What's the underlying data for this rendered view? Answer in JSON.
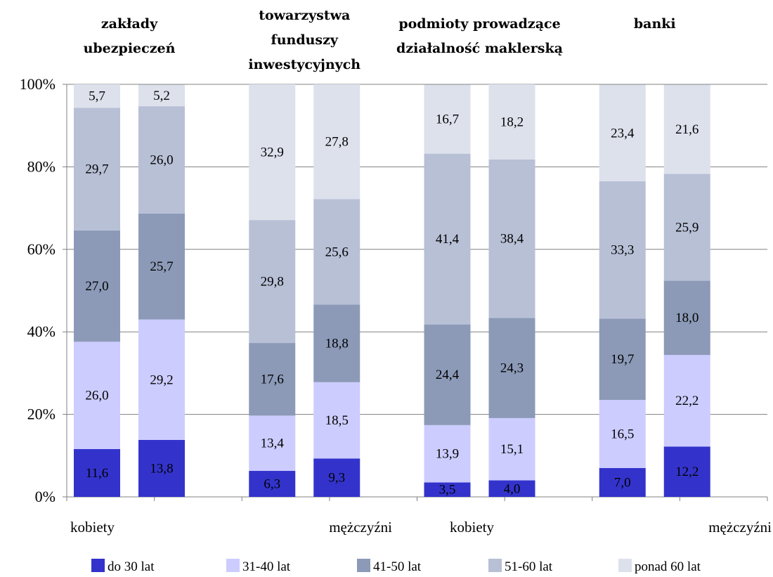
{
  "chart_data": {
    "type": "bar",
    "stacked": true,
    "groups": [
      {
        "title_lines": [
          "zakłady",
          "ubezpieczeń"
        ],
        "bars": [
          {
            "label": "kobiety",
            "values": [
              11.6,
              26.0,
              27.0,
              29.7,
              5.7
            ],
            "labels": [
              "11,6",
              "26,0",
              "27,0",
              "29,7",
              "5,7"
            ]
          },
          {
            "label": "mężczyźni",
            "values": [
              13.8,
              29.2,
              25.7,
              26.0,
              5.2
            ],
            "labels": [
              "13,8",
              "29,2",
              "25,7",
              "26,0",
              "5,2"
            ]
          }
        ]
      },
      {
        "title_lines": [
          "towarzystwa",
          "funduszy",
          "inwestycyjnych"
        ],
        "bars": [
          {
            "label": "kobiety",
            "values": [
              6.3,
              13.4,
              17.6,
              29.8,
              32.9
            ],
            "labels": [
              "6,3",
              "13,4",
              "17,6",
              "29,8",
              "32,9"
            ]
          },
          {
            "label": "mężczyźni",
            "values": [
              9.3,
              18.5,
              18.8,
              25.6,
              27.8
            ],
            "labels": [
              "9,3",
              "18,5",
              "18,8",
              "25,6",
              "27,8"
            ]
          }
        ]
      },
      {
        "title_lines": [
          "podmioty prowadzące",
          "działalność maklerską"
        ],
        "bars": [
          {
            "label": "kobiety",
            "values": [
              3.5,
              13.9,
              24.4,
              41.4,
              16.7
            ],
            "labels": [
              "3,5",
              "13,9",
              "24,4",
              "41,4",
              "16,7"
            ]
          },
          {
            "label": "mężczyźni",
            "values": [
              4.0,
              15.1,
              24.3,
              38.4,
              18.2
            ],
            "labels": [
              "4,0",
              "15,1",
              "24,3",
              "38,4",
              "18,2"
            ]
          }
        ]
      },
      {
        "title_lines": [
          "banki"
        ],
        "bars": [
          {
            "label": "kobiety",
            "values": [
              7.0,
              16.5,
              19.7,
              33.3,
              23.4
            ],
            "labels": [
              "7,0",
              "16,5",
              "19,7",
              "33,3",
              "23,4"
            ]
          },
          {
            "label": "mężczyźni",
            "values": [
              12.2,
              22.2,
              18.0,
              25.9,
              21.6
            ],
            "labels": [
              "12,2",
              "22,2",
              "18,0",
              "25,9",
              "21,6"
            ]
          }
        ]
      }
    ],
    "series": [
      {
        "name": "do 30 lat",
        "color": "#3333cc"
      },
      {
        "name": "31-40 lat",
        "color": "#ccccff"
      },
      {
        "name": "41-50 lat",
        "color": "#8c9ab8"
      },
      {
        "name": "51-60 lat",
        "color": "#b8c0d6"
      },
      {
        "name": "ponad 60 lat",
        "color": "#dde1ec"
      }
    ],
    "y_ticks": [
      "0%",
      "20%",
      "40%",
      "60%",
      "80%",
      "100%"
    ],
    "ylim": [
      0,
      100
    ],
    "x_labels": [
      "kobiety",
      "mężczyźni",
      "kobiety",
      "mężczyźni"
    ],
    "grid": true,
    "legend_position": "bottom"
  }
}
